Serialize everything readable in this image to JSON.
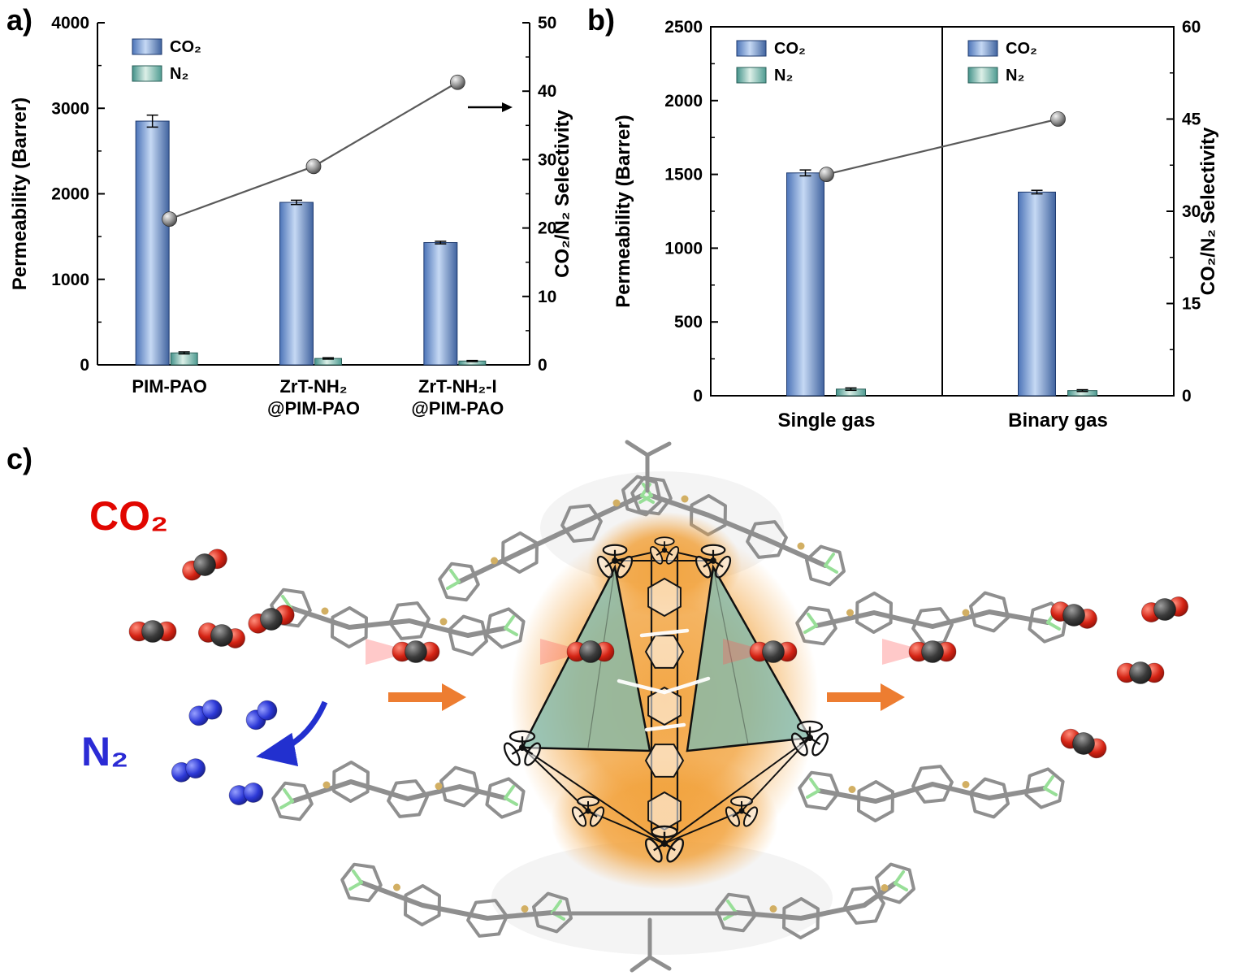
{
  "panels": {
    "a": {
      "label": "a)"
    },
    "b": {
      "label": "b)"
    },
    "c": {
      "label": "c)"
    }
  },
  "chart_data": [
    {
      "id": "a",
      "type": "bar",
      "ylabel": "Permeability (Barrer)",
      "y2label": "CO₂/N₂ Selectivity",
      "ylim": [
        0,
        4000
      ],
      "yticks": [
        0,
        1000,
        2000,
        3000,
        4000
      ],
      "y2lim": [
        0,
        50
      ],
      "y2ticks": [
        0,
        10,
        20,
        30,
        40,
        50
      ],
      "categories": [
        [
          "PIM-PAO"
        ],
        [
          "ZrT-NH₂",
          "@PIM-PAO"
        ],
        [
          "ZrT-NH₂-I",
          "@PIM-PAO"
        ]
      ],
      "series": [
        {
          "name": "CO₂",
          "values": [
            2850,
            1900,
            1430
          ],
          "errors": [
            70,
            25,
            15
          ]
        },
        {
          "name": "N₂",
          "values": [
            140,
            75,
            45
          ],
          "errors": [
            12,
            8,
            6
          ]
        }
      ],
      "line_series": {
        "name": "CO₂/N₂ Selectivity",
        "axis": "y2",
        "values": [
          21.3,
          29,
          41.3
        ]
      },
      "legend": [
        "CO₂",
        "N₂"
      ],
      "legend_position": "top-left",
      "grid": false
    },
    {
      "id": "b",
      "type": "bar",
      "ylabel": "Permeability (Barrer)",
      "y2label": "CO₂/N₂ Selectivity",
      "ylim": [
        0,
        2500
      ],
      "yticks": [
        0,
        500,
        1000,
        1500,
        2000,
        2500
      ],
      "y2lim": [
        0,
        60
      ],
      "y2ticks": [
        0,
        15,
        30,
        45,
        60
      ],
      "categories": [
        [
          "Single gas"
        ],
        [
          "Binary gas"
        ]
      ],
      "series": [
        {
          "name": "CO₂",
          "values": [
            1510,
            1380
          ],
          "errors": [
            20,
            12
          ]
        },
        {
          "name": "N₂",
          "values": [
            45,
            35
          ],
          "errors": [
            8,
            6
          ]
        }
      ],
      "line_series": {
        "name": "CO₂/N₂ Selectivity",
        "axis": "y2",
        "values": [
          36,
          45
        ]
      },
      "legend": [
        "CO₂",
        "N₂"
      ],
      "legend_position": "top-left-each-panel",
      "paneled": true,
      "grid": false
    }
  ],
  "illustration": {
    "co2_label": "CO₂",
    "n2_label": "N₂",
    "colors": {
      "co2_text": "#e10600",
      "n2_text": "#2b2bd5",
      "co2_oxygen": "#d42314",
      "co2_carbon": "#3c3c3c",
      "n2_atom": "#2c38d6",
      "flow_arrow": "#ed7d31",
      "reject_arrow": "#2230cf",
      "cage_glow": "#f2a23c",
      "cage_face": "#80baad",
      "framework": "#8f8f8f",
      "trail": "#ff5c5c"
    }
  },
  "style": {
    "co2_bar": [
      "#4c74b8",
      "#c6d9f4",
      "#40639f"
    ],
    "n2_bar": [
      "#43928a",
      "#dcefe7",
      "#4f9c92"
    ],
    "co2_bar_stroke": "#1e3a6e",
    "n2_bar_stroke": "#2a5f58",
    "line_color": "#5a5a5a",
    "axis_color": "#000000"
  }
}
